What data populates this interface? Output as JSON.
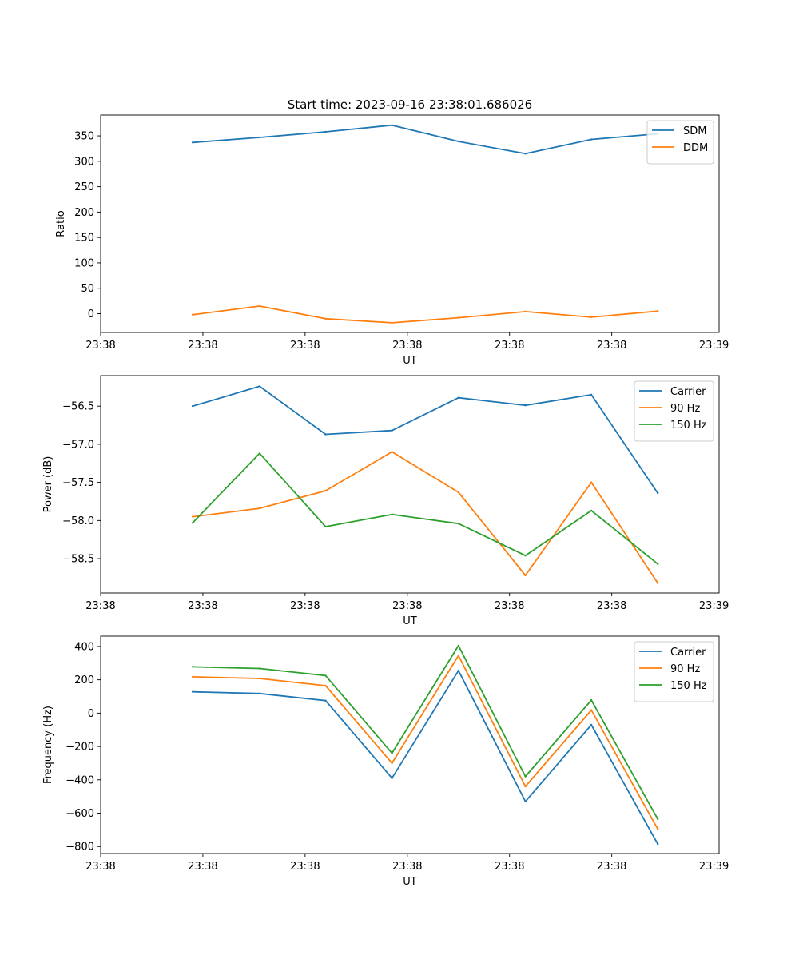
{
  "figure_title": "Start time: 2023-09-16 23:38:01.686026",
  "chart_data": [
    {
      "type": "line",
      "title": "Start time: 2023-09-16 23:38:01.686026",
      "xlabel": "UT",
      "ylabel": "Ratio",
      "x": [
        0.9,
        1.555,
        2.2,
        2.85,
        3.5,
        4.155,
        4.8,
        5.45
      ],
      "xlim": [
        0.0,
        6.05
      ],
      "xticks": [
        0,
        1,
        2,
        3,
        4,
        5,
        6
      ],
      "xticklabels": [
        "23:38",
        "23:38",
        "23:38",
        "23:38",
        "23:38",
        "23:38",
        "23:39"
      ],
      "ylim": [
        -37,
        391
      ],
      "yticks": [
        0,
        50,
        100,
        150,
        200,
        250,
        300,
        350
      ],
      "yticklabels": [
        "0",
        "50",
        "100",
        "150",
        "200",
        "250",
        "300",
        "350"
      ],
      "legend": "top-right",
      "series": [
        {
          "name": "SDM",
          "color": "#1f77b4",
          "values": [
            337,
            347,
            358,
            371,
            339,
            315,
            343,
            354
          ]
        },
        {
          "name": "DDM",
          "color": "#ff7f0e",
          "values": [
            -2,
            15,
            -10,
            -18,
            -8,
            4,
            -7,
            5
          ]
        }
      ]
    },
    {
      "type": "line",
      "title": "",
      "xlabel": "UT",
      "ylabel": "Power (dB)",
      "x": [
        0.9,
        1.555,
        2.2,
        2.85,
        3.5,
        4.155,
        4.8,
        5.45
      ],
      "xlim": [
        0.0,
        6.05
      ],
      "xticks": [
        0,
        1,
        2,
        3,
        4,
        5,
        6
      ],
      "xticklabels": [
        "23:38",
        "23:38",
        "23:38",
        "23:38",
        "23:38",
        "23:38",
        "23:39"
      ],
      "ylim": [
        -58.95,
        -56.1
      ],
      "yticks": [
        -58.5,
        -58.0,
        -57.5,
        -57.0,
        -56.5
      ],
      "yticklabels": [
        "−58.5",
        "−58.0",
        "−57.5",
        "−57.0",
        "−56.5"
      ],
      "legend": "top-right",
      "series": [
        {
          "name": "Carrier",
          "color": "#1f77b4",
          "values": [
            -56.5,
            -56.24,
            -56.87,
            -56.82,
            -56.39,
            -56.49,
            -56.35,
            -57.64
          ]
        },
        {
          "name": "90 Hz",
          "color": "#ff7f0e",
          "values": [
            -57.95,
            -57.84,
            -57.61,
            -57.1,
            -57.63,
            -58.72,
            -57.5,
            -58.82
          ]
        },
        {
          "name": "150 Hz",
          "color": "#2ca02c",
          "values": [
            -58.03,
            -57.12,
            -58.08,
            -57.92,
            -58.04,
            -58.46,
            -57.87,
            -58.57
          ]
        }
      ]
    },
    {
      "type": "line",
      "title": "",
      "xlabel": "UT",
      "ylabel": "Frequency (Hz)",
      "x": [
        0.9,
        1.555,
        2.2,
        2.85,
        3.5,
        4.155,
        4.8,
        5.45
      ],
      "xlim": [
        0.0,
        6.05
      ],
      "xticks": [
        0,
        1,
        2,
        3,
        4,
        5,
        6
      ],
      "xticklabels": [
        "23:38",
        "23:38",
        "23:38",
        "23:38",
        "23:38",
        "23:38",
        "23:39"
      ],
      "ylim": [
        -842,
        462
      ],
      "yticks": [
        -800,
        -600,
        -400,
        -200,
        0,
        200,
        400
      ],
      "yticklabels": [
        "−800",
        "−600",
        "−400",
        "−200",
        "0",
        "200",
        "400"
      ],
      "legend": "top-right",
      "series": [
        {
          "name": "Carrier",
          "color": "#1f77b4",
          "values": [
            128,
            118,
            75,
            -390,
            255,
            -530,
            -70,
            -785
          ]
        },
        {
          "name": "90 Hz",
          "color": "#ff7f0e",
          "values": [
            218,
            208,
            165,
            -300,
            345,
            -440,
            18,
            -695
          ]
        },
        {
          "name": "150 Hz",
          "color": "#2ca02c",
          "values": [
            278,
            268,
            225,
            -240,
            405,
            -380,
            78,
            -635
          ]
        }
      ]
    }
  ]
}
